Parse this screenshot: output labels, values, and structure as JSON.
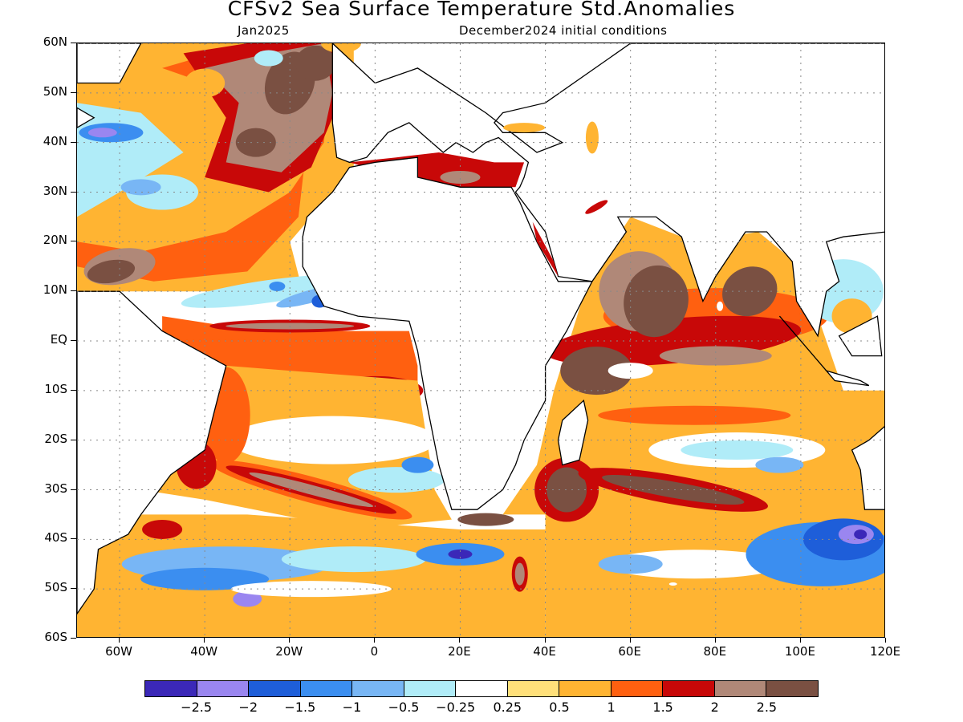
{
  "title": "CFSv2 Sea Surface Temperature Std.Anomalies",
  "subtitle_left": "Jan2025",
  "subtitle_right": "December2024 initial conditions",
  "lat_labels": [
    "60N",
    "50N",
    "40N",
    "30N",
    "20N",
    "10N",
    "EQ",
    "10S",
    "20S",
    "30S",
    "40S",
    "50S",
    "60S"
  ],
  "lon_labels": [
    "60W",
    "40W",
    "20W",
    "0",
    "20E",
    "40E",
    "60E",
    "80E",
    "100E",
    "120E"
  ],
  "colorbar": {
    "colors": [
      "#3b28b8",
      "#9a86f0",
      "#1e5ed9",
      "#3b8ef0",
      "#78b6f5",
      "#b0ecf8",
      "#ffffff",
      "#ffe07a",
      "#ffb432",
      "#ff6010",
      "#c80808",
      "#b08878",
      "#7a5042"
    ],
    "labels": [
      "−2.5",
      "−2",
      "−1.5",
      "−1",
      "−0.5",
      "−0.25",
      "0.25",
      "0.5",
      "1",
      "1.5",
      "2",
      "2.5"
    ]
  },
  "map": {
    "lon_range": [
      -70,
      120
    ],
    "lat_range": [
      -60,
      60
    ],
    "gridlines": true,
    "colors": {
      "land": "#ffffff",
      "coast": "#000000",
      "neutral": "#ffffff",
      "warm_weak": "#ffe07a",
      "warm_mod": "#ffb432",
      "warm": "#ff6010",
      "warm_strong": "#c80808",
      "warm_vstrong": "#b08878",
      "warm_extreme": "#7a5042",
      "cool_weak": "#b0ecf8",
      "cool": "#78b6f5",
      "cool_mod": "#3b8ef0",
      "cool_strong": "#1e5ed9",
      "cool_vstrong": "#9a86f0",
      "cool_extreme": "#3b28b8"
    }
  }
}
